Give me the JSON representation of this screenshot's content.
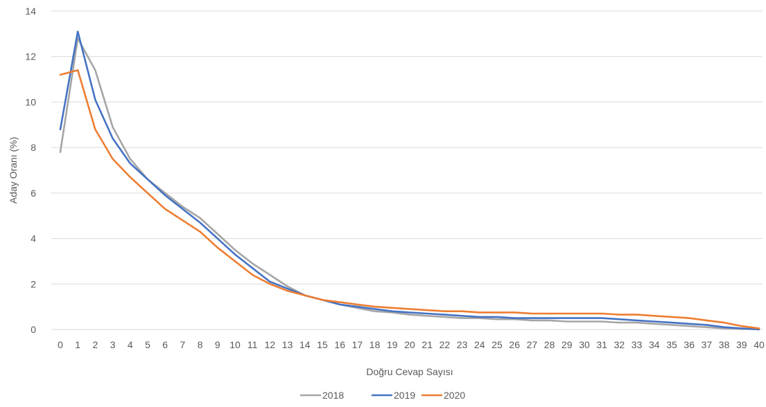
{
  "chart_data": {
    "type": "line",
    "title": "",
    "xlabel": "Doğru Cevap Sayısı",
    "ylabel": "Aday Oranı (%)",
    "ylim": [
      0,
      14
    ],
    "yticks": [
      "0",
      "2",
      "4",
      "6",
      "8",
      "10",
      "12",
      "14"
    ],
    "x": [
      "0",
      "1",
      "2",
      "3",
      "4",
      "5",
      "6",
      "7",
      "8",
      "9",
      "10",
      "11",
      "12",
      "13",
      "14",
      "15",
      "16",
      "17",
      "18",
      "19",
      "20",
      "21",
      "22",
      "23",
      "24",
      "25",
      "26",
      "27",
      "28",
      "29",
      "30",
      "31",
      "32",
      "33",
      "34",
      "35",
      "36",
      "37",
      "38",
      "39",
      "40"
    ],
    "grid": true,
    "legend_position": "bottom",
    "series": [
      {
        "name": "2018",
        "color": "#a5a5a5",
        "values": [
          7.8,
          12.8,
          11.4,
          8.9,
          7.5,
          6.6,
          6.0,
          5.4,
          4.9,
          4.2,
          3.5,
          2.9,
          2.4,
          1.9,
          1.5,
          1.3,
          1.1,
          0.95,
          0.8,
          0.75,
          0.65,
          0.6,
          0.55,
          0.5,
          0.5,
          0.45,
          0.45,
          0.4,
          0.4,
          0.35,
          0.35,
          0.35,
          0.3,
          0.3,
          0.25,
          0.2,
          0.15,
          0.1,
          0.05,
          0.02,
          0.02
        ]
      },
      {
        "name": "2019",
        "color": "#4472c4",
        "values": [
          8.8,
          13.1,
          10.1,
          8.4,
          7.3,
          6.6,
          5.9,
          5.3,
          4.7,
          4.0,
          3.3,
          2.7,
          2.1,
          1.8,
          1.5,
          1.3,
          1.1,
          1.0,
          0.9,
          0.8,
          0.75,
          0.7,
          0.65,
          0.6,
          0.55,
          0.55,
          0.5,
          0.5,
          0.5,
          0.5,
          0.5,
          0.5,
          0.45,
          0.4,
          0.35,
          0.3,
          0.25,
          0.2,
          0.1,
          0.05,
          0.0
        ]
      },
      {
        "name": "2020",
        "color": "#ed7d31",
        "values": [
          11.2,
          11.4,
          8.8,
          7.5,
          6.7,
          6.0,
          5.3,
          4.8,
          4.3,
          3.6,
          3.0,
          2.4,
          2.0,
          1.7,
          1.5,
          1.3,
          1.2,
          1.1,
          1.0,
          0.95,
          0.9,
          0.85,
          0.8,
          0.8,
          0.75,
          0.75,
          0.75,
          0.7,
          0.7,
          0.7,
          0.7,
          0.7,
          0.65,
          0.65,
          0.6,
          0.55,
          0.5,
          0.4,
          0.3,
          0.15,
          0.05
        ]
      }
    ]
  }
}
